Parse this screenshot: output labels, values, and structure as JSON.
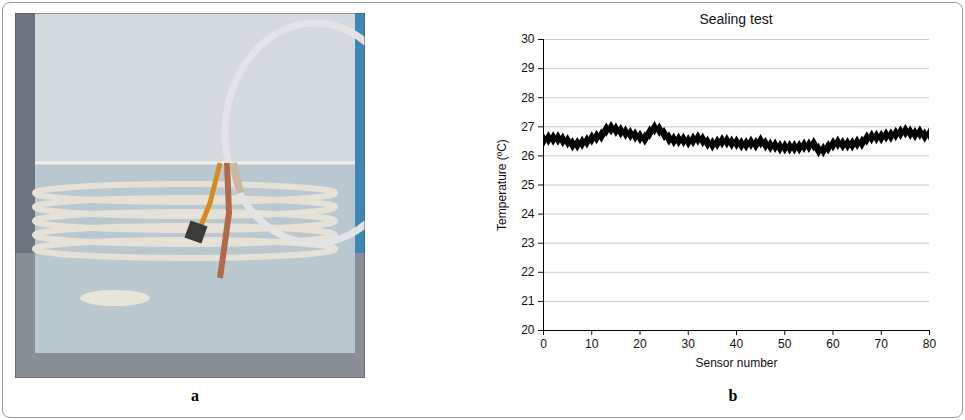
{
  "photo": {
    "panel_label": "a"
  },
  "chart_data": {
    "type": "scatter",
    "panel_label": "b",
    "title": "Sealing test",
    "x_label": "Sensor number",
    "y_label": "Temperature (ºC)",
    "x": [
      0,
      1,
      2,
      3,
      4,
      5,
      6,
      7,
      8,
      9,
      10,
      11,
      12,
      13,
      14,
      15,
      16,
      17,
      18,
      19,
      20,
      21,
      22,
      23,
      24,
      25,
      26,
      27,
      28,
      29,
      30,
      31,
      32,
      33,
      34,
      35,
      36,
      37,
      38,
      39,
      40,
      41,
      42,
      43,
      44,
      45,
      46,
      47,
      48,
      49,
      50,
      51,
      52,
      53,
      54,
      55,
      56,
      57,
      58,
      59,
      60,
      61,
      62,
      63,
      64,
      65,
      66,
      67,
      68,
      69,
      70,
      71,
      72,
      73,
      74,
      75,
      76,
      77,
      78,
      79,
      80
    ],
    "values": [
      26.55,
      26.6,
      26.6,
      26.6,
      26.55,
      26.5,
      26.4,
      26.4,
      26.45,
      26.5,
      26.6,
      26.65,
      26.7,
      26.9,
      26.95,
      26.9,
      26.85,
      26.8,
      26.75,
      26.7,
      26.65,
      26.6,
      26.8,
      26.95,
      26.9,
      26.75,
      26.6,
      26.55,
      26.55,
      26.55,
      26.5,
      26.55,
      26.6,
      26.55,
      26.45,
      26.4,
      26.45,
      26.5,
      26.5,
      26.45,
      26.45,
      26.4,
      26.4,
      26.45,
      26.4,
      26.5,
      26.4,
      26.35,
      26.35,
      26.3,
      26.3,
      26.3,
      26.3,
      26.3,
      26.35,
      26.35,
      26.4,
      26.2,
      26.2,
      26.3,
      26.4,
      26.45,
      26.4,
      26.4,
      26.4,
      26.45,
      26.45,
      26.6,
      26.65,
      26.65,
      26.65,
      26.7,
      26.7,
      26.75,
      26.8,
      26.85,
      26.8,
      26.75,
      26.8,
      26.7,
      26.75
    ],
    "xlim": [
      0,
      80
    ],
    "ylim": [
      20,
      30
    ],
    "xticks": [
      0,
      10,
      20,
      30,
      40,
      50,
      60,
      70,
      80
    ],
    "yticks": [
      20,
      21,
      22,
      23,
      24,
      25,
      26,
      27,
      28,
      29,
      30
    ],
    "grid": "y",
    "color": "#000000",
    "marker": "diamond"
  }
}
